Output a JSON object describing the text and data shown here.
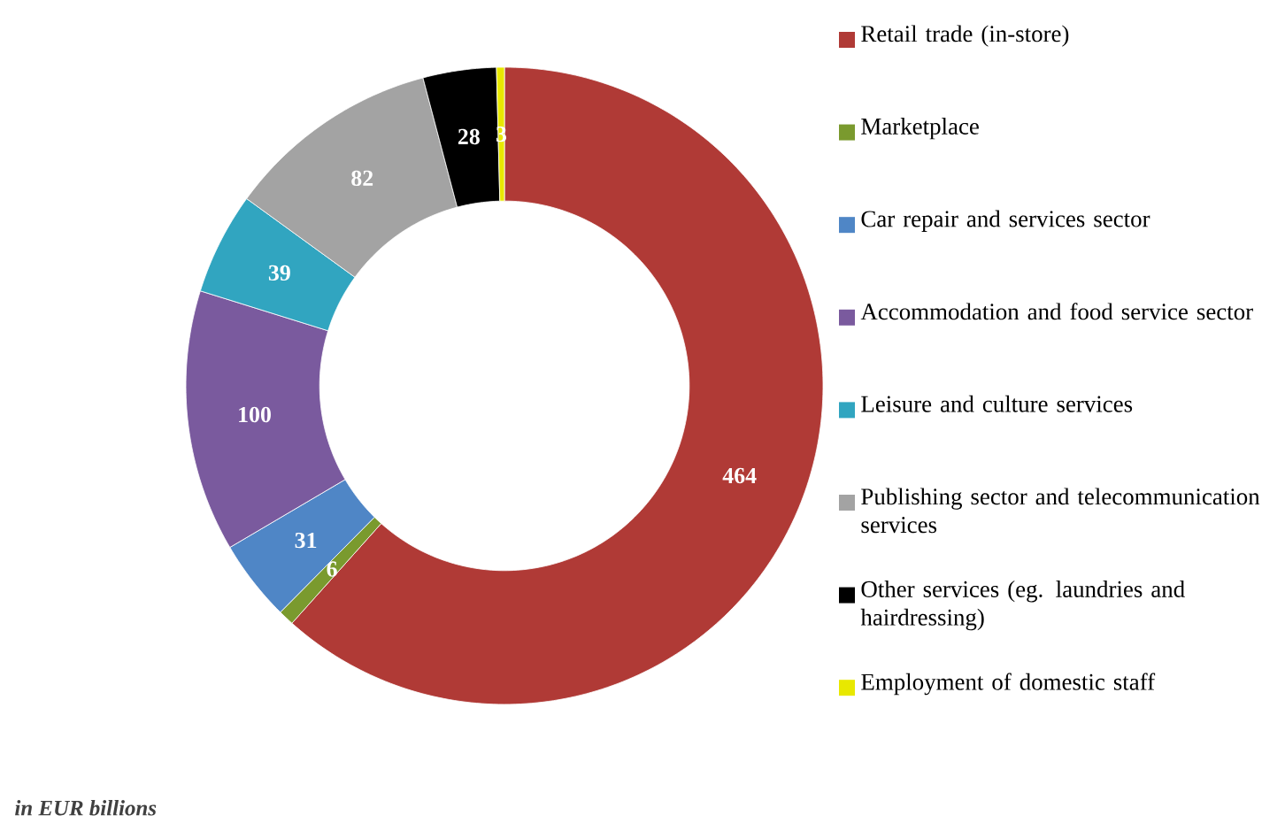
{
  "chart_data": {
    "type": "donut",
    "categories": [
      "Retail trade (in-store)",
      "Marketplace",
      "Car repair and services sector",
      "Accommodation and food service sector",
      "Leisure and culture services",
      "Publishing sector and telecommunication services",
      "Other services (eg. laundries and hairdressing)",
      "Employment of domestic staff"
    ],
    "values": [
      464,
      6,
      31,
      100,
      39,
      82,
      28,
      3
    ],
    "colors": [
      "#b03a36",
      "#7a9a2e",
      "#4f86c6",
      "#7a5a9e",
      "#31a5c0",
      "#a3a3a3",
      "#000000",
      "#e8e800"
    ],
    "data_labels": true,
    "legend": "right",
    "annotations": [
      "in EUR billions"
    ]
  }
}
